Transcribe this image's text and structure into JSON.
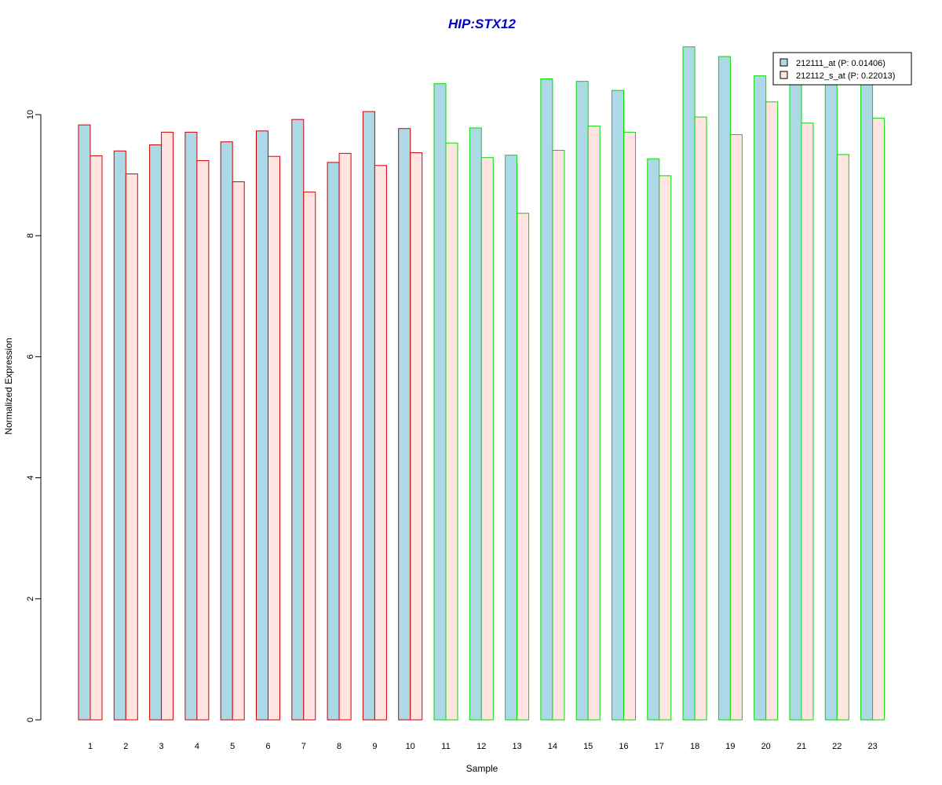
{
  "colors": {
    "title": "#0000cc",
    "series_fills": [
      "#add8e6",
      "#ffe4e1"
    ],
    "group_borders": [
      "#d00000",
      "#00dd00"
    ],
    "axis": "#000000"
  },
  "chart_data": {
    "type": "bar",
    "title": "HIP:STX12",
    "xlabel": "Sample",
    "ylabel": "Normalized Expression",
    "ylim": [
      0,
      11.5
    ],
    "yticks": [
      0,
      2,
      4,
      6,
      8,
      10
    ],
    "categories": [
      "1",
      "2",
      "3",
      "4",
      "5",
      "6",
      "7",
      "8",
      "9",
      "10",
      "11",
      "12",
      "13",
      "14",
      "15",
      "16",
      "17",
      "18",
      "19",
      "20",
      "21",
      "22",
      "23"
    ],
    "groups": [
      0,
      0,
      0,
      0,
      0,
      0,
      0,
      0,
      0,
      0,
      1,
      1,
      1,
      1,
      1,
      1,
      1,
      1,
      1,
      1,
      1,
      1,
      1
    ],
    "series": [
      {
        "name": "212111_at (P: 0.01406)",
        "values": [
          9.83,
          9.4,
          9.5,
          9.71,
          9.55,
          9.73,
          9.92,
          9.21,
          10.05,
          9.77,
          10.51,
          9.78,
          9.33,
          10.59,
          10.55,
          10.4,
          9.27,
          11.12,
          10.96,
          10.64,
          10.5,
          10.5,
          10.5
        ]
      },
      {
        "name": "212112_s_at (P: 0.22013)",
        "values": [
          9.32,
          9.02,
          9.71,
          9.24,
          8.89,
          9.31,
          8.72,
          9.36,
          9.16,
          9.37,
          9.53,
          9.29,
          8.37,
          9.41,
          9.81,
          9.71,
          8.99,
          9.96,
          9.67,
          10.21,
          9.86,
          9.34,
          9.94
        ]
      }
    ],
    "legend_position": "top-right",
    "grid": false
  }
}
